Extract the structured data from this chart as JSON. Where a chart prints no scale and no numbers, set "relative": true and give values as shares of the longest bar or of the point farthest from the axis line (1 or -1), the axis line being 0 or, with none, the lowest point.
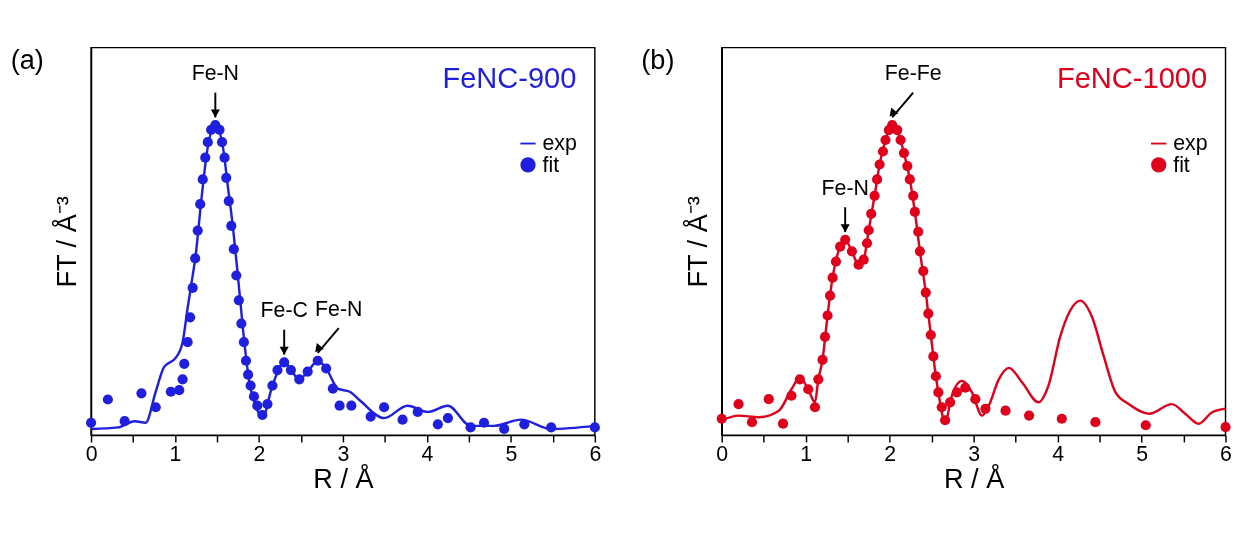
{
  "chart_data": [
    {
      "type": "line",
      "title": "(a)",
      "xlabel": "R / Å",
      "ylabel": "FT / Å⁻³",
      "legend_title": "FeNC-900",
      "legend": "top right",
      "relative": true,
      "xlim": [
        0,
        6
      ],
      "xticks": [
        0,
        {
          "value": 0.5,
          "label": null
        },
        1,
        {
          "value": 1.5,
          "label": null
        },
        2,
        {
          "value": 2.5,
          "label": null
        },
        3,
        {
          "value": 3.5,
          "label": null
        },
        4,
        {
          "value": 4.5,
          "label": null
        },
        5,
        {
          "value": 5.5,
          "label": null
        },
        6
      ],
      "series": [
        {
          "name": "exp",
          "color": "#1f1fe0",
          "marker": "none",
          "line_style": "solid",
          "x": [
            0,
            0.32,
            0.52,
            0.65,
            0.77,
            0.87,
            1.01,
            1.09,
            1.15,
            1.19,
            1.25,
            1.31,
            1.39,
            1.48,
            1.57,
            1.63,
            1.69,
            1.75,
            1.81,
            1.88,
            1.98,
            2.04,
            2.16,
            2.3,
            2.38,
            2.48,
            2.58,
            2.7,
            2.8,
            2.94,
            3.08,
            3.21,
            3.49,
            3.77,
            4.01,
            4.25,
            4.52,
            4.8,
            5.12,
            5.48,
            6.0
          ],
          "values": [
            0.02,
            0.025,
            0.045,
            0.04,
            0.14,
            0.22,
            0.25,
            0.3,
            0.41,
            0.48,
            0.59,
            0.75,
            0.93,
            1.0,
            0.93,
            0.8,
            0.67,
            0.51,
            0.34,
            0.18,
            0.08,
            0.055,
            0.16,
            0.235,
            0.21,
            0.18,
            0.205,
            0.24,
            0.215,
            0.15,
            0.14,
            0.11,
            0.055,
            0.095,
            0.075,
            0.095,
            0.03,
            0.03,
            0.05,
            0.02,
            0.03
          ]
        },
        {
          "name": "fit",
          "type": "scatter",
          "color": "#1f1fe0",
          "marker": "circle",
          "x": [
            0,
            0.2,
            0.4,
            0.6,
            0.77,
            0.95,
            1.05,
            1.09,
            1.11,
            1.15,
            1.18,
            1.21,
            1.24,
            1.27,
            1.3,
            1.33,
            1.36,
            1.39,
            1.43,
            1.48,
            1.53,
            1.56,
            1.59,
            1.61,
            1.64,
            1.67,
            1.7,
            1.73,
            1.76,
            1.79,
            1.82,
            1.845,
            1.87,
            1.9,
            1.94,
            1.98,
            2.04,
            2.1,
            2.16,
            2.22,
            2.3,
            2.38,
            2.48,
            2.58,
            2.7,
            2.8,
            2.88,
            2.96,
            3.1,
            3.33,
            3.49,
            3.71,
            3.89,
            4.13,
            4.25,
            4.52,
            4.68,
            4.92,
            5.16,
            5.48,
            6.0
          ],
          "values": [
            0.04,
            0.115,
            0.045,
            0.135,
            0.09,
            0.14,
            0.145,
            0.18,
            0.23,
            0.3,
            0.38,
            0.475,
            0.57,
            0.66,
            0.745,
            0.825,
            0.895,
            0.945,
            0.985,
            1.0,
            0.985,
            0.945,
            0.895,
            0.83,
            0.755,
            0.675,
            0.6,
            0.515,
            0.435,
            0.36,
            0.3,
            0.24,
            0.195,
            0.16,
            0.125,
            0.095,
            0.065,
            0.1,
            0.16,
            0.21,
            0.235,
            0.21,
            0.18,
            0.205,
            0.24,
            0.215,
            0.15,
            0.095,
            0.095,
            0.06,
            0.09,
            0.05,
            0.075,
            0.035,
            0.055,
            0.025,
            0.04,
            0.02,
            0.035,
            0.025,
            0.025
          ]
        }
      ],
      "annotations": [
        {
          "text": "Fe-N",
          "x": 1.48,
          "y": 1.0
        },
        {
          "text": "Fe-C",
          "x": 2.3,
          "y": 0.235
        },
        {
          "text": "Fe-N",
          "x": 2.7,
          "y": 0.24
        }
      ]
    },
    {
      "type": "line",
      "title": "(b)",
      "xlabel": "R / Å",
      "ylabel": "FT / Å⁻³",
      "legend_title": "FeNC-1000",
      "legend": "top right",
      "relative": true,
      "xlim": [
        0,
        6
      ],
      "xticks": [
        0,
        {
          "value": 0.5,
          "label": null
        },
        1,
        {
          "value": 1.5,
          "label": null
        },
        2,
        {
          "value": 2.5,
          "label": null
        },
        3,
        {
          "value": 3.5,
          "label": null
        },
        4,
        {
          "value": 4.5,
          "label": null
        },
        5,
        {
          "value": 5.5,
          "label": null
        },
        6
      ],
      "series": [
        {
          "name": "exp",
          "color": "#e0001b",
          "marker": "none",
          "line_style": "solid",
          "x": [
            0,
            0.2,
            0.44,
            0.68,
            0.83,
            0.93,
            1.03,
            1.11,
            1.15,
            1.2,
            1.26,
            1.32,
            1.41,
            1.47,
            1.55,
            1.63,
            1.69,
            1.75,
            1.82,
            1.88,
            1.95,
            2.03,
            2.09,
            2.17,
            2.24,
            2.3,
            2.36,
            2.43,
            2.49,
            2.55,
            2.58,
            2.66,
            2.74,
            2.86,
            2.98,
            3.1,
            3.18,
            3.3,
            3.42,
            3.58,
            3.77,
            3.89,
            4.03,
            4.15,
            4.27,
            4.41,
            4.55,
            4.69,
            4.85,
            5.09,
            5.36,
            5.52,
            5.68,
            5.84,
            6.0
          ],
          "values": [
            0.048,
            0.063,
            0.058,
            0.079,
            0.148,
            0.185,
            0.148,
            0.106,
            0.18,
            0.243,
            0.386,
            0.508,
            0.608,
            0.63,
            0.593,
            0.55,
            0.566,
            0.661,
            0.772,
            0.873,
            0.952,
            1.0,
            0.984,
            0.91,
            0.825,
            0.72,
            0.593,
            0.46,
            0.323,
            0.19,
            0.138,
            0.042,
            0.127,
            0.175,
            0.138,
            0.063,
            0.095,
            0.18,
            0.217,
            0.169,
            0.106,
            0.159,
            0.317,
            0.402,
            0.434,
            0.381,
            0.254,
            0.138,
            0.1,
            0.069,
            0.1,
            0.069,
            0.037,
            0.074,
            0.085
          ]
        },
        {
          "name": "fit",
          "type": "scatter",
          "color": "#e0001b",
          "marker": "circle",
          "x": [
            0,
            0.2,
            0.36,
            0.56,
            0.73,
            0.83,
            0.93,
            1.03,
            1.11,
            1.15,
            1.2,
            1.23,
            1.26,
            1.29,
            1.32,
            1.36,
            1.41,
            1.47,
            1.55,
            1.63,
            1.69,
            1.73,
            1.75,
            1.78,
            1.82,
            1.85,
            1.88,
            1.92,
            1.95,
            1.99,
            2.03,
            2.09,
            2.13,
            2.17,
            2.21,
            2.24,
            2.28,
            2.3,
            2.34,
            2.36,
            2.4,
            2.43,
            2.46,
            2.49,
            2.52,
            2.55,
            2.58,
            2.62,
            2.66,
            2.72,
            2.8,
            2.9,
            3.02,
            3.14,
            3.38,
            3.66,
            4.05,
            4.45,
            5.05,
            6.0
          ],
          "values": [
            0.053,
            0.1,
            0.042,
            0.116,
            0.037,
            0.127,
            0.18,
            0.148,
            0.09,
            0.18,
            0.243,
            0.317,
            0.386,
            0.45,
            0.508,
            0.56,
            0.608,
            0.63,
            0.593,
            0.55,
            0.566,
            0.619,
            0.661,
            0.714,
            0.772,
            0.825,
            0.873,
            0.915,
            0.952,
            0.984,
            1.0,
            0.984,
            0.952,
            0.91,
            0.868,
            0.825,
            0.772,
            0.72,
            0.656,
            0.593,
            0.529,
            0.46,
            0.392,
            0.323,
            0.254,
            0.19,
            0.138,
            0.09,
            0.048,
            0.106,
            0.138,
            0.153,
            0.116,
            0.085,
            0.079,
            0.063,
            0.053,
            0.042,
            0.032,
            0.026
          ]
        }
      ],
      "annotations": [
        {
          "text": "Fe-N",
          "x": 1.47,
          "y": 0.63
        },
        {
          "text": "Fe-Fe",
          "x": 2.03,
          "y": 1.0
        }
      ]
    }
  ]
}
